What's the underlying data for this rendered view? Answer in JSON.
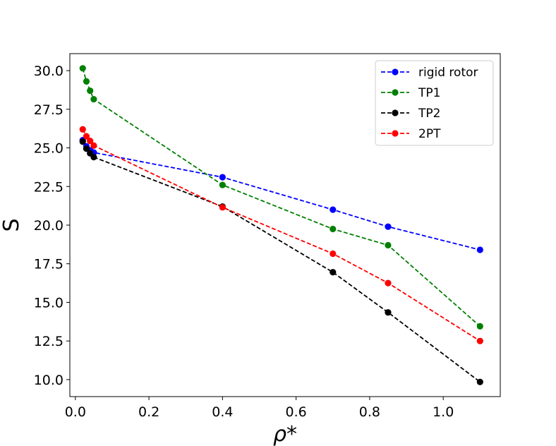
{
  "chart_data": {
    "type": "line",
    "title": "",
    "xlabel": "ρ*",
    "ylabel": "S",
    "xlim": [
      -0.015,
      1.155
    ],
    "ylim": [
      8.9,
      31.1
    ],
    "xticks": [
      0.0,
      0.2,
      0.4,
      0.6,
      0.8,
      1.0
    ],
    "xtick_labels": [
      "0.0",
      "0.2",
      "0.4",
      "0.6",
      "0.8",
      "1.0"
    ],
    "yticks": [
      10.0,
      12.5,
      15.0,
      17.5,
      20.0,
      22.5,
      25.0,
      27.5,
      30.0
    ],
    "ytick_labels": [
      "10.0",
      "12.5",
      "15.0",
      "17.5",
      "20.0",
      "22.5",
      "25.0",
      "27.5",
      "30.0"
    ],
    "grid": false,
    "legend_position": "top-right",
    "x": [
      0.02,
      0.03,
      0.04,
      0.05,
      0.4,
      0.7,
      0.85,
      1.1
    ],
    "series": [
      {
        "name": "rigid rotor",
        "color": "#0000ff",
        "values": [
          25.5,
          25.1,
          24.85,
          24.7,
          23.1,
          21.0,
          19.9,
          18.4
        ]
      },
      {
        "name": "TP1",
        "color": "#008000",
        "values": [
          30.15,
          29.3,
          28.7,
          28.15,
          22.6,
          19.75,
          18.7,
          13.45
        ]
      },
      {
        "name": "TP2",
        "color": "#000000",
        "values": [
          25.4,
          24.95,
          24.65,
          24.4,
          21.2,
          16.95,
          14.35,
          9.85
        ]
      },
      {
        "name": "2PT",
        "color": "#ff0000",
        "values": [
          26.2,
          25.75,
          25.45,
          25.15,
          21.15,
          18.15,
          16.25,
          12.5
        ]
      }
    ]
  }
}
